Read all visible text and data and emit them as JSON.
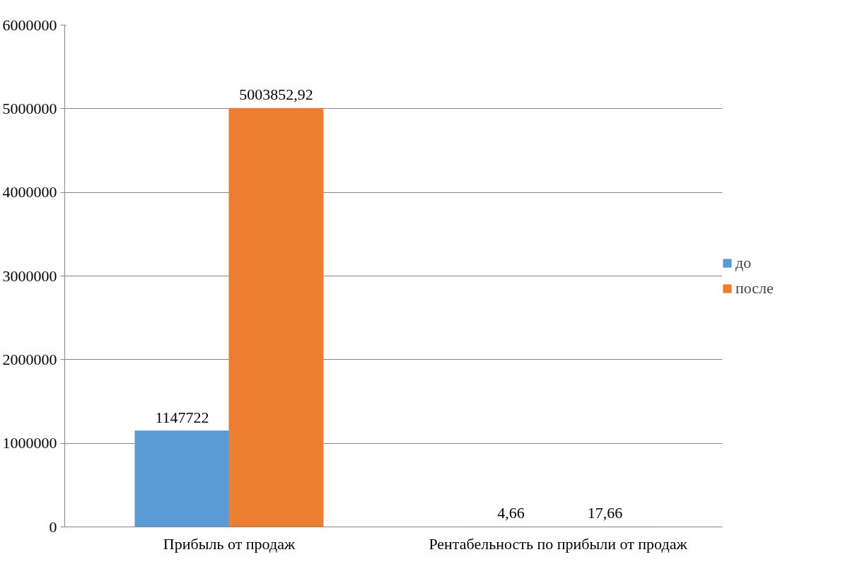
{
  "chart_data": {
    "type": "bar",
    "categories": [
      "Прибыль от продаж",
      "Рентабельность по прибыли от продаж"
    ],
    "series": [
      {
        "name": "до",
        "color": "#5b9bd5",
        "values": [
          1147722,
          4.66
        ],
        "value_labels": [
          "1147722",
          "4,66"
        ]
      },
      {
        "name": "после",
        "color": "#ed7d31",
        "values": [
          5003852.92,
          17.66
        ],
        "value_labels": [
          "5003852,92",
          "17,66"
        ]
      }
    ],
    "ylim": [
      0,
      6000000
    ],
    "yticks": [
      0,
      1000000,
      2000000,
      3000000,
      4000000,
      5000000,
      6000000
    ],
    "grid": "y",
    "legend": "right"
  }
}
